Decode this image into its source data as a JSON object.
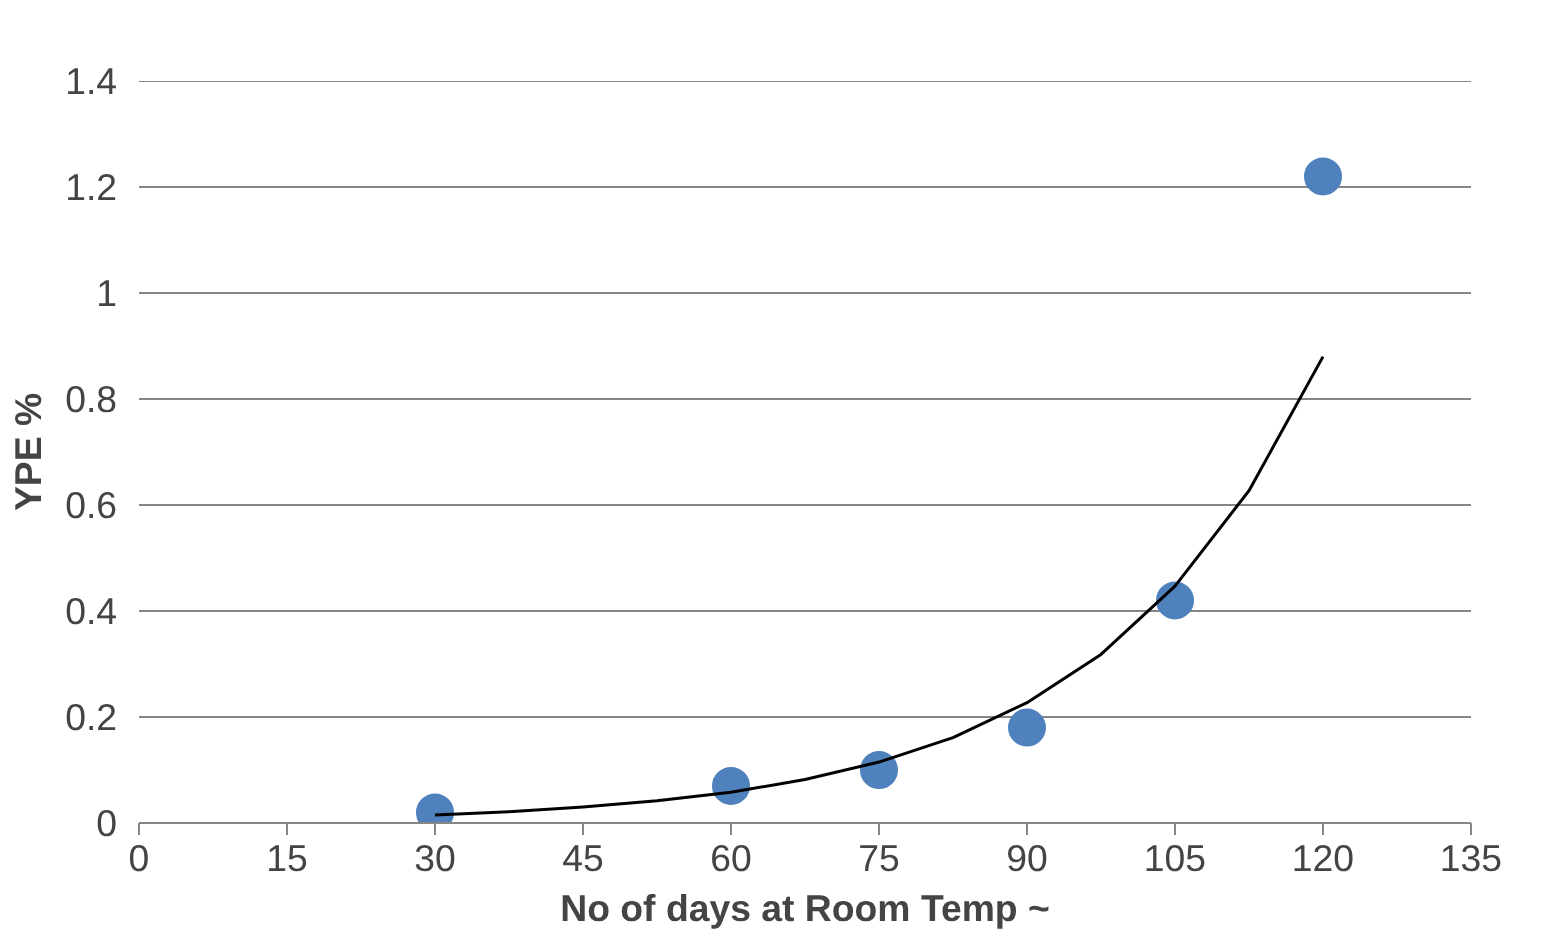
{
  "chart_data": {
    "type": "scatter",
    "xlabel": "No of days at Room Temp ~",
    "ylabel": "YPE %",
    "xlim": [
      0,
      135
    ],
    "xticks": [
      0,
      15,
      30,
      45,
      60,
      75,
      90,
      105,
      120,
      135
    ],
    "ylim": [
      0,
      1.4
    ],
    "yticks": [
      0,
      0.2,
      0.4,
      0.6,
      0.8,
      1,
      1.2,
      1.4
    ],
    "grid": "y",
    "marker": "circle",
    "series": [
      {
        "color": "#4f81bd",
        "x": [
          30,
          60,
          75,
          90,
          105,
          120
        ],
        "values": [
          0.02,
          0.07,
          0.1,
          0.18,
          0.42,
          1.22
        ]
      },
      {
        "type": "line",
        "color": "#000000",
        "line_style": "solid",
        "marker": "none",
        "x": [
          30,
          37.5,
          45,
          52.5,
          60,
          67.5,
          75,
          82.5,
          90,
          97.5,
          105,
          112.5,
          120
        ],
        "values": [
          0.015,
          0.021,
          0.03,
          0.042,
          0.058,
          0.082,
          0.115,
          0.161,
          0.227,
          0.318,
          0.447,
          0.627,
          0.88
        ]
      }
    ]
  }
}
